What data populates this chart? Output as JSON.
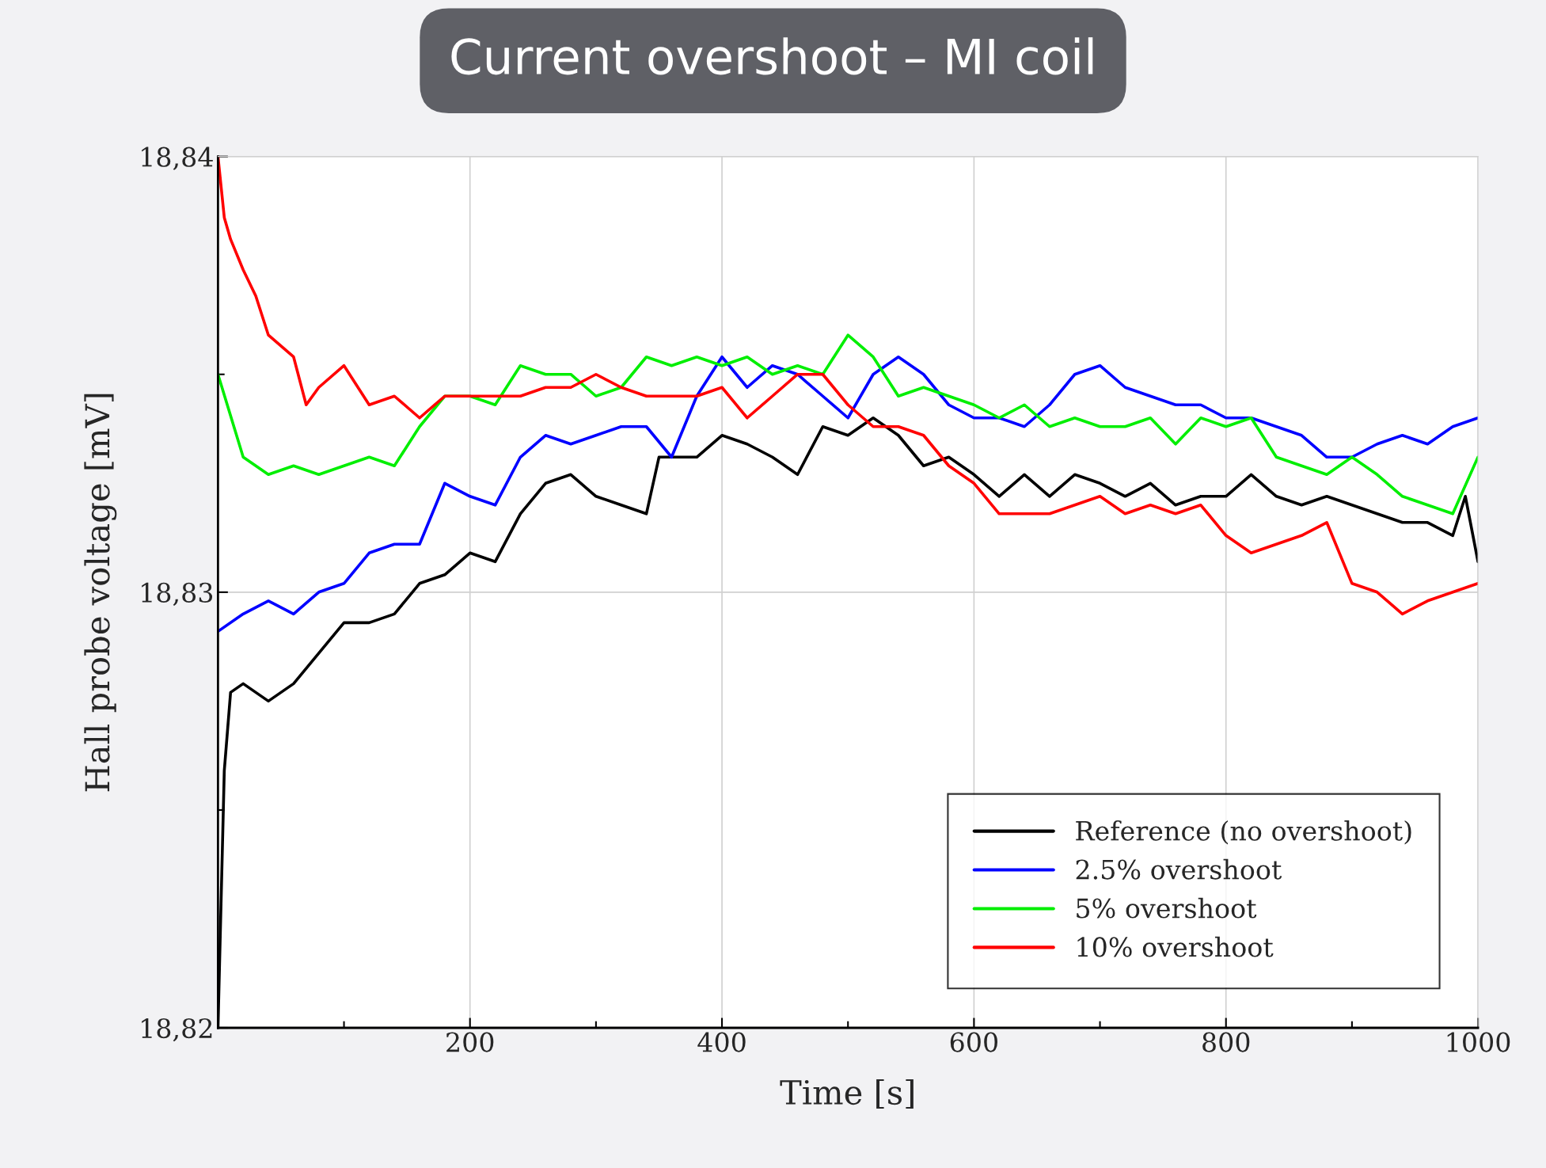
{
  "chart_data": {
    "type": "line",
    "title": "Current overshoot – MI coil",
    "xlabel": "Time [s]",
    "ylabel": "Hall probe voltage [mV]",
    "xlim": [
      0,
      1000
    ],
    "ylim": [
      18.82,
      18.84
    ],
    "xticks": [
      {
        "value": 100,
        "label": null
      },
      200,
      {
        "value": 300,
        "label": null
      },
      400,
      {
        "value": 500,
        "label": null
      },
      600,
      {
        "value": 700,
        "label": null
      },
      800,
      {
        "value": 900,
        "label": null
      },
      1000
    ],
    "yticks": [
      {
        "value": 18.82,
        "label": "18,82"
      },
      {
        "value": 18.825,
        "label": null
      },
      {
        "value": 18.83,
        "label": "18,83"
      },
      {
        "value": 18.835,
        "label": null
      },
      {
        "value": 18.84,
        "label": "18,84"
      }
    ],
    "grid": true,
    "legend": "bottom right",
    "line_style": "solid",
    "marker": "none",
    "series": [
      {
        "name": "Reference (no overshoot)",
        "color": "#000000",
        "x": [
          0,
          5,
          10,
          20,
          40,
          60,
          80,
          100,
          120,
          140,
          160,
          180,
          200,
          220,
          240,
          260,
          280,
          300,
          320,
          340,
          350,
          380,
          400,
          420,
          440,
          460,
          480,
          500,
          520,
          540,
          560,
          580,
          600,
          620,
          640,
          660,
          680,
          700,
          720,
          740,
          760,
          780,
          800,
          820,
          840,
          860,
          880,
          900,
          920,
          940,
          960,
          980,
          990,
          1000
        ],
        "values": [
          18.82,
          18.8259,
          18.8277,
          18.8279,
          18.8275,
          18.8279,
          18.8286,
          18.8293,
          18.8293,
          18.8295,
          18.8302,
          18.8304,
          18.8309,
          18.8307,
          18.8318,
          18.8325,
          18.8327,
          18.8322,
          18.832,
          18.8318,
          18.8331,
          18.8331,
          18.8336,
          18.8334,
          18.8331,
          18.8327,
          18.8338,
          18.8336,
          18.834,
          18.8336,
          18.8329,
          18.8331,
          18.8327,
          18.8322,
          18.8327,
          18.8322,
          18.8327,
          18.8325,
          18.8322,
          18.8325,
          18.832,
          18.8322,
          18.8322,
          18.8327,
          18.8322,
          18.832,
          18.8322,
          18.832,
          18.8318,
          18.8316,
          18.8316,
          18.8313,
          18.8322,
          18.8307
        ]
      },
      {
        "name": "2.5% overshoot",
        "color": "#0000ff",
        "x": [
          0,
          20,
          40,
          60,
          80,
          100,
          120,
          140,
          160,
          180,
          200,
          220,
          240,
          260,
          280,
          300,
          320,
          340,
          360,
          380,
          400,
          420,
          440,
          460,
          480,
          500,
          520,
          540,
          560,
          580,
          600,
          620,
          640,
          660,
          680,
          700,
          720,
          740,
          760,
          780,
          800,
          820,
          840,
          860,
          880,
          900,
          920,
          940,
          960,
          980,
          1000
        ],
        "values": [
          18.8291,
          18.8295,
          18.8298,
          18.8295,
          18.83,
          18.8302,
          18.8309,
          18.8311,
          18.8311,
          18.8325,
          18.8322,
          18.832,
          18.8331,
          18.8336,
          18.8334,
          18.8336,
          18.8338,
          18.8338,
          18.8331,
          18.8345,
          18.8354,
          18.8347,
          18.8352,
          18.835,
          18.8345,
          18.834,
          18.835,
          18.8354,
          18.835,
          18.8343,
          18.834,
          18.834,
          18.8338,
          18.8343,
          18.835,
          18.8352,
          18.8347,
          18.8345,
          18.8343,
          18.8343,
          18.834,
          18.834,
          18.8338,
          18.8336,
          18.8331,
          18.8331,
          18.8334,
          18.8336,
          18.8334,
          18.8338,
          18.834
        ]
      },
      {
        "name": "5% overshoot",
        "color": "#00ee00",
        "x": [
          0,
          20,
          40,
          60,
          80,
          100,
          120,
          140,
          160,
          180,
          200,
          220,
          240,
          260,
          280,
          300,
          320,
          340,
          360,
          380,
          400,
          420,
          440,
          460,
          480,
          500,
          520,
          540,
          560,
          580,
          600,
          620,
          640,
          660,
          680,
          700,
          720,
          740,
          760,
          780,
          800,
          820,
          840,
          860,
          880,
          900,
          920,
          940,
          960,
          980,
          1000
        ],
        "values": [
          18.835,
          18.8331,
          18.8327,
          18.8329,
          18.8327,
          18.8329,
          18.8331,
          18.8329,
          18.8338,
          18.8345,
          18.8345,
          18.8343,
          18.8352,
          18.835,
          18.835,
          18.8345,
          18.8347,
          18.8354,
          18.8352,
          18.8354,
          18.8352,
          18.8354,
          18.835,
          18.8352,
          18.835,
          18.8359,
          18.8354,
          18.8345,
          18.8347,
          18.8345,
          18.8343,
          18.834,
          18.8343,
          18.8338,
          18.834,
          18.8338,
          18.8338,
          18.834,
          18.8334,
          18.834,
          18.8338,
          18.834,
          18.8331,
          18.8329,
          18.8327,
          18.8331,
          18.8327,
          18.8322,
          18.832,
          18.8318,
          18.8331
        ]
      },
      {
        "name": "10% overshoot",
        "color": "#ff0000",
        "x": [
          0,
          5,
          10,
          20,
          30,
          40,
          60,
          70,
          80,
          100,
          120,
          140,
          160,
          180,
          200,
          220,
          240,
          260,
          280,
          300,
          320,
          340,
          360,
          380,
          400,
          420,
          440,
          460,
          480,
          500,
          520,
          540,
          560,
          580,
          600,
          620,
          640,
          660,
          680,
          700,
          720,
          740,
          760,
          780,
          800,
          820,
          840,
          860,
          880,
          900,
          920,
          940,
          960,
          980,
          1000
        ],
        "values": [
          18.84,
          18.8386,
          18.8381,
          18.8374,
          18.8368,
          18.8359,
          18.8354,
          18.8343,
          18.8347,
          18.8352,
          18.8343,
          18.8345,
          18.834,
          18.8345,
          18.8345,
          18.8345,
          18.8345,
          18.8347,
          18.8347,
          18.835,
          18.8347,
          18.8345,
          18.8345,
          18.8345,
          18.8347,
          18.834,
          18.8345,
          18.835,
          18.835,
          18.8343,
          18.8338,
          18.8338,
          18.8336,
          18.8329,
          18.8325,
          18.8318,
          18.8318,
          18.8318,
          18.832,
          18.8322,
          18.8318,
          18.832,
          18.8318,
          18.832,
          18.8313,
          18.8309,
          18.8311,
          18.8313,
          18.8316,
          18.8302,
          18.83,
          18.8295,
          18.8298,
          18.83,
          18.8302
        ]
      }
    ]
  }
}
